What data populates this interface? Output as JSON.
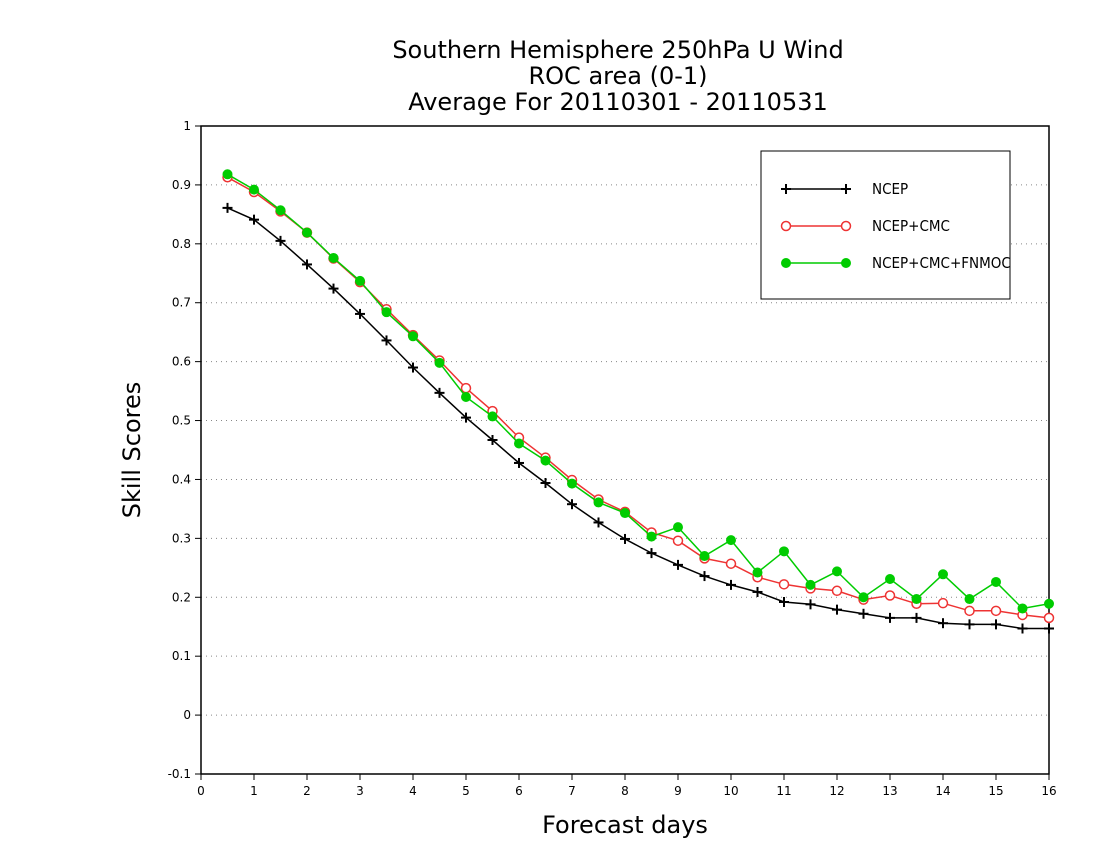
{
  "chart_data": {
    "type": "line",
    "title": [
      "Southern Hemisphere 250hPa U Wind",
      "ROC area (0-1)",
      "Average For 20110301 - 20110531"
    ],
    "xlabel": "Forecast days",
    "ylabel": "Skill Scores",
    "xlim": [
      0,
      16
    ],
    "ylim": [
      -0.1,
      1
    ],
    "xticks": [
      "0",
      "1",
      "2",
      "3",
      "4",
      "5",
      "6",
      "7",
      "8",
      "9",
      "10",
      "11",
      "12",
      "13",
      "14",
      "15",
      "16"
    ],
    "yticks": [
      "-0.1",
      "0",
      "0.1",
      "0.2",
      "0.3",
      "0.4",
      "0.5",
      "0.6",
      "0.7",
      "0.8",
      "0.9",
      "1"
    ],
    "grid": true,
    "legend_position": "top-right",
    "x": [
      0.5,
      1,
      1.5,
      2,
      2.5,
      3,
      3.5,
      4,
      4.5,
      5,
      5.5,
      6,
      6.5,
      7,
      7.5,
      8,
      8.5,
      9,
      9.5,
      10,
      10.5,
      11,
      11.5,
      12,
      12.5,
      13,
      13.5,
      14,
      14.5,
      15,
      15.5,
      16
    ],
    "series": [
      {
        "name": "NCEP",
        "color": "#000000",
        "marker": "plus",
        "values": [
          0.861,
          0.841,
          0.805,
          0.765,
          0.724,
          0.681,
          0.636,
          0.59,
          0.547,
          0.505,
          0.467,
          0.428,
          0.394,
          0.358,
          0.327,
          0.299,
          0.275,
          0.255,
          0.236,
          0.221,
          0.209,
          0.192,
          0.188,
          0.179,
          0.172,
          0.165,
          0.165,
          0.156,
          0.154,
          0.154,
          0.147,
          0.147
        ]
      },
      {
        "name": "NCEP+CMC",
        "color": "#ee3333",
        "marker": "open-circle",
        "values": [
          0.913,
          0.888,
          0.855,
          0.819,
          0.775,
          0.735,
          0.689,
          0.645,
          0.602,
          0.555,
          0.516,
          0.471,
          0.437,
          0.399,
          0.366,
          0.345,
          0.31,
          0.296,
          0.266,
          0.257,
          0.234,
          0.222,
          0.215,
          0.211,
          0.196,
          0.203,
          0.189,
          0.19,
          0.177,
          0.177,
          0.17,
          0.165
        ]
      },
      {
        "name": "NCEP+CMC+FNMOC",
        "color": "#00cc00",
        "marker": "filled-circle",
        "values": [
          0.918,
          0.892,
          0.857,
          0.819,
          0.776,
          0.737,
          0.684,
          0.643,
          0.598,
          0.54,
          0.507,
          0.461,
          0.432,
          0.393,
          0.361,
          0.343,
          0.303,
          0.319,
          0.27,
          0.297,
          0.242,
          0.278,
          0.221,
          0.244,
          0.2,
          0.231,
          0.197,
          0.239,
          0.197,
          0.226,
          0.181,
          0.189
        ]
      }
    ]
  }
}
